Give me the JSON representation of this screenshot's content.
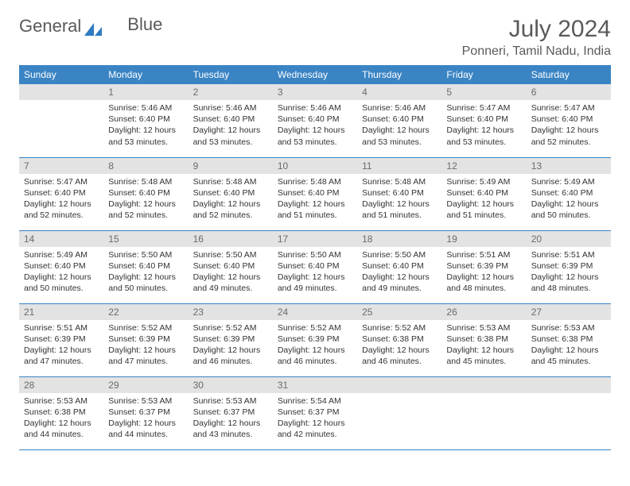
{
  "logo": {
    "word1": "General",
    "word2": "Blue"
  },
  "title": "July 2024",
  "location": "Ponneri, Tamil Nadu, India",
  "weekdays": [
    "Sunday",
    "Monday",
    "Tuesday",
    "Wednesday",
    "Thursday",
    "Friday",
    "Saturday"
  ],
  "colors": {
    "header_bg": "#3a84c4",
    "header_text": "#ffffff",
    "rule": "#3a84c4",
    "daynum_bg": "#e3e3e3",
    "text": "#333333",
    "title_text": "#5a5a5a",
    "logo_blue": "#2f7bbf"
  },
  "fonts": {
    "title_size_pt": 22,
    "location_size_pt": 12,
    "weekday_size_pt": 9,
    "daynum_size_pt": 9,
    "body_size_pt": 8
  },
  "grid": {
    "cols": 7,
    "rows": 5,
    "first_weekday_index": 1
  },
  "days": [
    {
      "n": 1,
      "sunrise": "5:46 AM",
      "sunset": "6:40 PM",
      "dl": "12 hours and 53 minutes."
    },
    {
      "n": 2,
      "sunrise": "5:46 AM",
      "sunset": "6:40 PM",
      "dl": "12 hours and 53 minutes."
    },
    {
      "n": 3,
      "sunrise": "5:46 AM",
      "sunset": "6:40 PM",
      "dl": "12 hours and 53 minutes."
    },
    {
      "n": 4,
      "sunrise": "5:46 AM",
      "sunset": "6:40 PM",
      "dl": "12 hours and 53 minutes."
    },
    {
      "n": 5,
      "sunrise": "5:47 AM",
      "sunset": "6:40 PM",
      "dl": "12 hours and 53 minutes."
    },
    {
      "n": 6,
      "sunrise": "5:47 AM",
      "sunset": "6:40 PM",
      "dl": "12 hours and 52 minutes."
    },
    {
      "n": 7,
      "sunrise": "5:47 AM",
      "sunset": "6:40 PM",
      "dl": "12 hours and 52 minutes."
    },
    {
      "n": 8,
      "sunrise": "5:48 AM",
      "sunset": "6:40 PM",
      "dl": "12 hours and 52 minutes."
    },
    {
      "n": 9,
      "sunrise": "5:48 AM",
      "sunset": "6:40 PM",
      "dl": "12 hours and 52 minutes."
    },
    {
      "n": 10,
      "sunrise": "5:48 AM",
      "sunset": "6:40 PM",
      "dl": "12 hours and 51 minutes."
    },
    {
      "n": 11,
      "sunrise": "5:48 AM",
      "sunset": "6:40 PM",
      "dl": "12 hours and 51 minutes."
    },
    {
      "n": 12,
      "sunrise": "5:49 AM",
      "sunset": "6:40 PM",
      "dl": "12 hours and 51 minutes."
    },
    {
      "n": 13,
      "sunrise": "5:49 AM",
      "sunset": "6:40 PM",
      "dl": "12 hours and 50 minutes."
    },
    {
      "n": 14,
      "sunrise": "5:49 AM",
      "sunset": "6:40 PM",
      "dl": "12 hours and 50 minutes."
    },
    {
      "n": 15,
      "sunrise": "5:50 AM",
      "sunset": "6:40 PM",
      "dl": "12 hours and 50 minutes."
    },
    {
      "n": 16,
      "sunrise": "5:50 AM",
      "sunset": "6:40 PM",
      "dl": "12 hours and 49 minutes."
    },
    {
      "n": 17,
      "sunrise": "5:50 AM",
      "sunset": "6:40 PM",
      "dl": "12 hours and 49 minutes."
    },
    {
      "n": 18,
      "sunrise": "5:50 AM",
      "sunset": "6:40 PM",
      "dl": "12 hours and 49 minutes."
    },
    {
      "n": 19,
      "sunrise": "5:51 AM",
      "sunset": "6:39 PM",
      "dl": "12 hours and 48 minutes."
    },
    {
      "n": 20,
      "sunrise": "5:51 AM",
      "sunset": "6:39 PM",
      "dl": "12 hours and 48 minutes."
    },
    {
      "n": 21,
      "sunrise": "5:51 AM",
      "sunset": "6:39 PM",
      "dl": "12 hours and 47 minutes."
    },
    {
      "n": 22,
      "sunrise": "5:52 AM",
      "sunset": "6:39 PM",
      "dl": "12 hours and 47 minutes."
    },
    {
      "n": 23,
      "sunrise": "5:52 AM",
      "sunset": "6:39 PM",
      "dl": "12 hours and 46 minutes."
    },
    {
      "n": 24,
      "sunrise": "5:52 AM",
      "sunset": "6:39 PM",
      "dl": "12 hours and 46 minutes."
    },
    {
      "n": 25,
      "sunrise": "5:52 AM",
      "sunset": "6:38 PM",
      "dl": "12 hours and 46 minutes."
    },
    {
      "n": 26,
      "sunrise": "5:53 AM",
      "sunset": "6:38 PM",
      "dl": "12 hours and 45 minutes."
    },
    {
      "n": 27,
      "sunrise": "5:53 AM",
      "sunset": "6:38 PM",
      "dl": "12 hours and 45 minutes."
    },
    {
      "n": 28,
      "sunrise": "5:53 AM",
      "sunset": "6:38 PM",
      "dl": "12 hours and 44 minutes."
    },
    {
      "n": 29,
      "sunrise": "5:53 AM",
      "sunset": "6:37 PM",
      "dl": "12 hours and 44 minutes."
    },
    {
      "n": 30,
      "sunrise": "5:53 AM",
      "sunset": "6:37 PM",
      "dl": "12 hours and 43 minutes."
    },
    {
      "n": 31,
      "sunrise": "5:54 AM",
      "sunset": "6:37 PM",
      "dl": "12 hours and 42 minutes."
    }
  ],
  "labels": {
    "sunrise_prefix": "Sunrise: ",
    "sunset_prefix": "Sunset: ",
    "daylight_prefix": "Daylight: "
  }
}
